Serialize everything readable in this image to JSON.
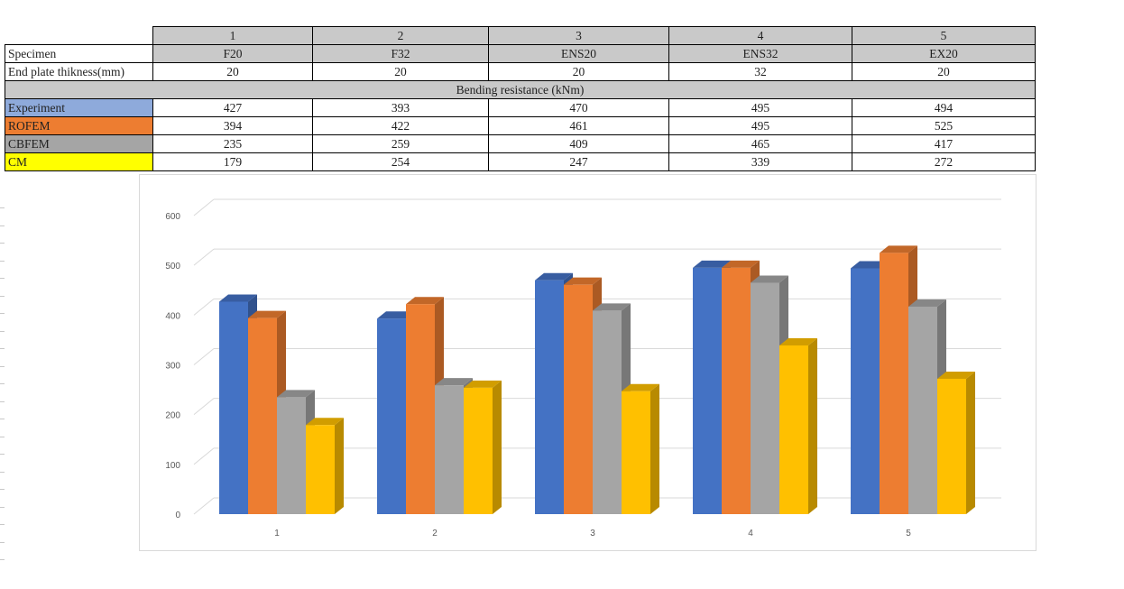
{
  "table": {
    "header_label": "Specimen",
    "thickness_label": "End plate thikness(mm)",
    "section_title": "Bending resistance (kNm)",
    "columns": [
      {
        "number": "1",
        "name": "F20",
        "thickness": "20"
      },
      {
        "number": "2",
        "name": "F32",
        "thickness": "20"
      },
      {
        "number": "3",
        "name": "ENS20",
        "thickness": "20"
      },
      {
        "number": "4",
        "name": "ENS32",
        "thickness": "32"
      },
      {
        "number": "5",
        "name": "EX20",
        "thickness": "20"
      }
    ],
    "rows": [
      {
        "label": "Experiment",
        "color": "#8eaadb",
        "values": [
          "427",
          "393",
          "470",
          "495",
          "494"
        ]
      },
      {
        "label": "ROFEM",
        "color": "#ed7d31",
        "values": [
          "394",
          "422",
          "461",
          "495",
          "525"
        ]
      },
      {
        "label": "CBFEM",
        "color": "#a5a5a5",
        "values": [
          "235",
          "259",
          "409",
          "465",
          "417"
        ]
      },
      {
        "label": "CM",
        "color": "#ffff00",
        "values": [
          "179",
          "254",
          "247",
          "339",
          "272"
        ]
      }
    ]
  },
  "chart_data": {
    "type": "bar",
    "categories": [
      "1",
      "2",
      "3",
      "4",
      "5"
    ],
    "series": [
      {
        "name": "Experiment",
        "values": [
          427,
          393,
          470,
          495,
          494
        ],
        "color": "#4472c4"
      },
      {
        "name": "ROFEM",
        "values": [
          394,
          422,
          461,
          495,
          525
        ],
        "color": "#ed7d31"
      },
      {
        "name": "CBFEM",
        "values": [
          235,
          259,
          409,
          465,
          417
        ],
        "color": "#a5a5a5"
      },
      {
        "name": "CM",
        "values": [
          179,
          254,
          247,
          339,
          272
        ],
        "color": "#ffc000"
      }
    ],
    "y_ticks": [
      "0",
      "100",
      "200",
      "300",
      "400",
      "500",
      "600"
    ],
    "ylim": [
      0,
      600
    ],
    "grid": true,
    "style": "3d-clustered-column"
  }
}
